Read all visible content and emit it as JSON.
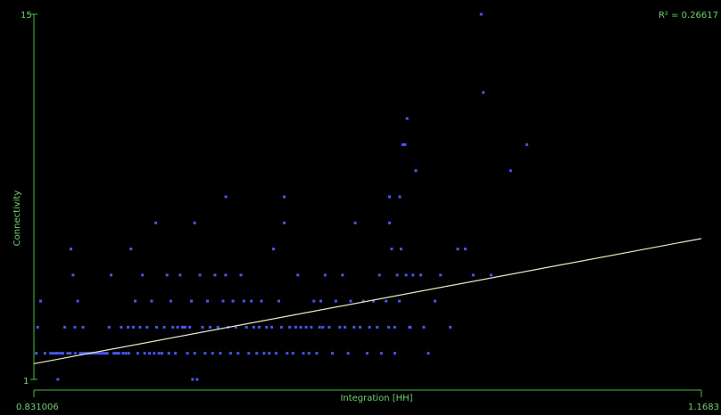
{
  "chart_data": {
    "type": "scatter",
    "xlabel": "Integration [HH]",
    "ylabel": "Connectivity",
    "annotation": "R² = 0.26617",
    "xlim": [
      0.831006,
      1.1683
    ],
    "ylim": [
      1,
      15
    ],
    "x_tick_labels": [
      "0.831006",
      "1.1683"
    ],
    "y_tick_labels": [
      "1",
      "15"
    ],
    "trendline": {
      "x": [
        0.831006,
        1.1683
      ],
      "y": [
        1.6,
        6.4
      ]
    },
    "colors": {
      "background": "#000000",
      "axis": "#3fbf3f",
      "points": "#4b5cff",
      "trendline": "#e8ecc6",
      "text": "#6fd36f"
    },
    "points": [
      {
        "x": 0.8322,
        "y": 2
      },
      {
        "x": 0.8329,
        "y": 3
      },
      {
        "x": 0.8344,
        "y": 4
      },
      {
        "x": 0.8366,
        "y": 2
      },
      {
        "x": 0.8394,
        "y": 2
      },
      {
        "x": 0.8406,
        "y": 2
      },
      {
        "x": 0.8419,
        "y": 2
      },
      {
        "x": 0.8431,
        "y": 2
      },
      {
        "x": 0.8444,
        "y": 2
      },
      {
        "x": 0.8456,
        "y": 2
      },
      {
        "x": 0.8431,
        "y": 1
      },
      {
        "x": 0.8466,
        "y": 3
      },
      {
        "x": 0.8481,
        "y": 2
      },
      {
        "x": 0.8494,
        "y": 2
      },
      {
        "x": 0.8497,
        "y": 6
      },
      {
        "x": 0.8508,
        "y": 5
      },
      {
        "x": 0.8517,
        "y": 3
      },
      {
        "x": 0.8519,
        "y": 2
      },
      {
        "x": 0.8531,
        "y": 4
      },
      {
        "x": 0.8544,
        "y": 2
      },
      {
        "x": 0.8556,
        "y": 2
      },
      {
        "x": 0.8558,
        "y": 3
      },
      {
        "x": 0.8569,
        "y": 2
      },
      {
        "x": 0.8581,
        "y": 2
      },
      {
        "x": 0.8594,
        "y": 2
      },
      {
        "x": 0.8606,
        "y": 2
      },
      {
        "x": 0.8619,
        "y": 2
      },
      {
        "x": 0.8631,
        "y": 2
      },
      {
        "x": 0.8644,
        "y": 2
      },
      {
        "x": 0.8656,
        "y": 2
      },
      {
        "x": 0.8669,
        "y": 2
      },
      {
        "x": 0.8681,
        "y": 2
      },
      {
        "x": 0.869,
        "y": 3
      },
      {
        "x": 0.87,
        "y": 5
      },
      {
        "x": 0.8714,
        "y": 2
      },
      {
        "x": 0.8727,
        "y": 2
      },
      {
        "x": 0.874,
        "y": 2
      },
      {
        "x": 0.8751,
        "y": 3
      },
      {
        "x": 0.876,
        "y": 2
      },
      {
        "x": 0.8775,
        "y": 2
      },
      {
        "x": 0.8786,
        "y": 3
      },
      {
        "x": 0.879,
        "y": 2
      },
      {
        "x": 0.88,
        "y": 6
      },
      {
        "x": 0.8812,
        "y": 3
      },
      {
        "x": 0.8822,
        "y": 4
      },
      {
        "x": 0.8835,
        "y": 2
      },
      {
        "x": 0.8846,
        "y": 3
      },
      {
        "x": 0.8859,
        "y": 5
      },
      {
        "x": 0.887,
        "y": 2
      },
      {
        "x": 0.8882,
        "y": 3
      },
      {
        "x": 0.8894,
        "y": 2
      },
      {
        "x": 0.8905,
        "y": 4
      },
      {
        "x": 0.8918,
        "y": 2
      },
      {
        "x": 0.8926,
        "y": 7
      },
      {
        "x": 0.893,
        "y": 3
      },
      {
        "x": 0.8942,
        "y": 2
      },
      {
        "x": 0.8957,
        "y": 2
      },
      {
        "x": 0.8969,
        "y": 3
      },
      {
        "x": 0.8983,
        "y": 5
      },
      {
        "x": 0.8992,
        "y": 2
      },
      {
        "x": 0.9002,
        "y": 4
      },
      {
        "x": 0.9012,
        "y": 3
      },
      {
        "x": 0.9025,
        "y": 2
      },
      {
        "x": 0.9036,
        "y": 3
      },
      {
        "x": 0.9049,
        "y": 5
      },
      {
        "x": 0.9061,
        "y": 3
      },
      {
        "x": 0.9074,
        "y": 3
      },
      {
        "x": 0.9086,
        "y": 2
      },
      {
        "x": 0.9098,
        "y": 3
      },
      {
        "x": 0.9106,
        "y": 4
      },
      {
        "x": 0.9112,
        "y": 1
      },
      {
        "x": 0.9122,
        "y": 7
      },
      {
        "x": 0.9123,
        "y": 2
      },
      {
        "x": 0.9135,
        "y": 1
      },
      {
        "x": 0.9149,
        "y": 5
      },
      {
        "x": 0.9162,
        "y": 3
      },
      {
        "x": 0.9175,
        "y": 2
      },
      {
        "x": 0.9187,
        "y": 4
      },
      {
        "x": 0.92,
        "y": 3
      },
      {
        "x": 0.9213,
        "y": 2
      },
      {
        "x": 0.9225,
        "y": 5
      },
      {
        "x": 0.924,
        "y": 3
      },
      {
        "x": 0.9252,
        "y": 2
      },
      {
        "x": 0.9266,
        "y": 4
      },
      {
        "x": 0.9279,
        "y": 5
      },
      {
        "x": 0.928,
        "y": 8
      },
      {
        "x": 0.9292,
        "y": 3
      },
      {
        "x": 0.9304,
        "y": 2
      },
      {
        "x": 0.9316,
        "y": 4
      },
      {
        "x": 0.933,
        "y": 3
      },
      {
        "x": 0.9342,
        "y": 2
      },
      {
        "x": 0.9356,
        "y": 5
      },
      {
        "x": 0.9371,
        "y": 4
      },
      {
        "x": 0.9384,
        "y": 3
      },
      {
        "x": 0.9396,
        "y": 2
      },
      {
        "x": 0.9409,
        "y": 4
      },
      {
        "x": 0.9421,
        "y": 3
      },
      {
        "x": 0.9436,
        "y": 2
      },
      {
        "x": 0.9448,
        "y": 3
      },
      {
        "x": 0.946,
        "y": 4
      },
      {
        "x": 0.9473,
        "y": 2
      },
      {
        "x": 0.9486,
        "y": 3
      },
      {
        "x": 0.9499,
        "y": 2
      },
      {
        "x": 0.9512,
        "y": 3
      },
      {
        "x": 0.9521,
        "y": 6
      },
      {
        "x": 0.9534,
        "y": 2
      },
      {
        "x": 0.9548,
        "y": 4
      },
      {
        "x": 0.9561,
        "y": 3
      },
      {
        "x": 0.9575,
        "y": 7
      },
      {
        "x": 0.9575,
        "y": 8
      },
      {
        "x": 0.959,
        "y": 2
      },
      {
        "x": 0.9603,
        "y": 3
      },
      {
        "x": 0.9619,
        "y": 2
      },
      {
        "x": 0.9633,
        "y": 3
      },
      {
        "x": 0.9644,
        "y": 5
      },
      {
        "x": 0.9659,
        "y": 3
      },
      {
        "x": 0.9672,
        "y": 2
      },
      {
        "x": 0.9686,
        "y": 3
      },
      {
        "x": 0.97,
        "y": 2
      },
      {
        "x": 0.9712,
        "y": 3
      },
      {
        "x": 0.9725,
        "y": 4
      },
      {
        "x": 0.9739,
        "y": 2
      },
      {
        "x": 0.9754,
        "y": 3
      },
      {
        "x": 0.976,
        "y": 4
      },
      {
        "x": 0.977,
        "y": 3
      },
      {
        "x": 0.9782,
        "y": 5
      },
      {
        "x": 0.9802,
        "y": 3
      },
      {
        "x": 0.9819,
        "y": 2
      },
      {
        "x": 0.9836,
        "y": 4
      },
      {
        "x": 0.9856,
        "y": 3
      },
      {
        "x": 0.987,
        "y": 5
      },
      {
        "x": 0.9882,
        "y": 3
      },
      {
        "x": 0.9898,
        "y": 2
      },
      {
        "x": 0.9911,
        "y": 4
      },
      {
        "x": 0.9928,
        "y": 3
      },
      {
        "x": 0.9934,
        "y": 7
      },
      {
        "x": 0.9958,
        "y": 3
      },
      {
        "x": 0.9975,
        "y": 4
      },
      {
        "x": 0.9994,
        "y": 2
      },
      {
        "x": 1.0006,
        "y": 3
      },
      {
        "x": 1.0026,
        "y": 4
      },
      {
        "x": 1.0045,
        "y": 3
      },
      {
        "x": 1.0056,
        "y": 5
      },
      {
        "x": 1.0066,
        "y": 2
      },
      {
        "x": 1.009,
        "y": 4
      },
      {
        "x": 1.0103,
        "y": 3
      },
      {
        "x": 1.0107,
        "y": 8
      },
      {
        "x": 1.0107,
        "y": 7
      },
      {
        "x": 1.0118,
        "y": 6
      },
      {
        "x": 1.0133,
        "y": 3
      },
      {
        "x": 1.0134,
        "y": 2
      },
      {
        "x": 1.0146,
        "y": 5
      },
      {
        "x": 1.0157,
        "y": 4
      },
      {
        "x": 1.0159,
        "y": 8
      },
      {
        "x": 1.0165,
        "y": 6
      },
      {
        "x": 1.0174,
        "y": 10
      },
      {
        "x": 1.0185,
        "y": 10
      },
      {
        "x": 1.0191,
        "y": 5
      },
      {
        "x": 1.0196,
        "y": 11
      },
      {
        "x": 1.0208,
        "y": 3
      },
      {
        "x": 1.0212,
        "y": 3
      },
      {
        "x": 1.0225,
        "y": 5
      },
      {
        "x": 1.024,
        "y": 9
      },
      {
        "x": 1.0265,
        "y": 5
      },
      {
        "x": 1.028,
        "y": 3
      },
      {
        "x": 1.0303,
        "y": 2
      },
      {
        "x": 1.0337,
        "y": 4
      },
      {
        "x": 1.0365,
        "y": 5
      },
      {
        "x": 1.0414,
        "y": 3
      },
      {
        "x": 1.0452,
        "y": 6
      },
      {
        "x": 1.049,
        "y": 6
      },
      {
        "x": 1.053,
        "y": 5
      },
      {
        "x": 1.057,
        "y": 15
      },
      {
        "x": 1.0581,
        "y": 12
      },
      {
        "x": 1.062,
        "y": 5
      },
      {
        "x": 1.0719,
        "y": 9
      },
      {
        "x": 1.0801,
        "y": 10
      }
    ]
  }
}
